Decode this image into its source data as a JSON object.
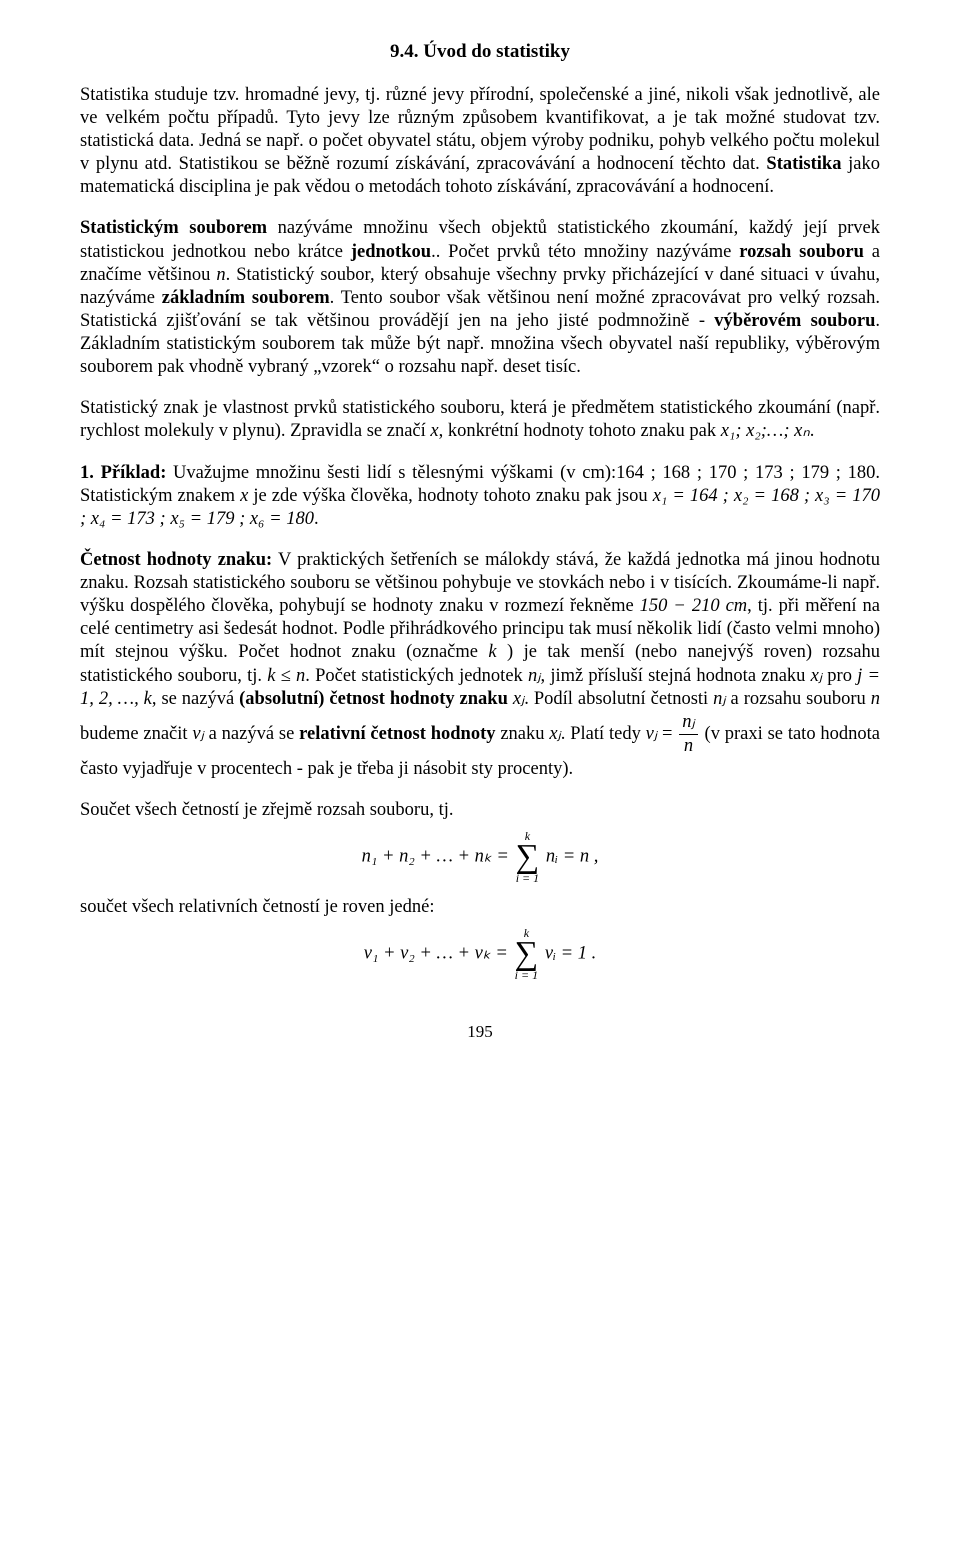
{
  "title": "9.4. Úvod do statistiky",
  "p1a": "Statistika studuje tzv. hromadné jevy, tj. různé jevy přírodní, společenské a jiné, nikoli však jednotlivě, ale ve velkém počtu případů. Tyto jevy lze různým způsobem kvantifikovat, a je tak možné studovat tzv. statistická data. Jedná se např. o počet obyvatel státu, objem výroby podniku, pohyb velkého počtu molekul v plynu atd. Statistikou se běžně rozumí získávání, zpracovávání a hodnocení těchto dat. ",
  "p1b": "Statistika",
  "p1c": " jako matematická disciplina je pak vědou o metodách tohoto získávání, zpracovávání a hodnocení.",
  "p2a": "Statistickým souborem",
  "p2b": " nazýváme množinu všech objektů statistického zkoumání, každý její prvek statistickou jednotkou nebo krátce ",
  "p2c": "jednotkou",
  "p2d": ".. Počet prvků této množiny nazýváme ",
  "p2e": "rozsah souboru",
  "p2f": " a značíme většinou ",
  "p2g": ". Statistický soubor, který obsahuje všechny prvky přicházející v dané situaci v úvahu, nazýváme ",
  "p2h": "základním souborem",
  "p2i": ". Tento soubor však většinou není možné zpracovávat pro velký rozsah. Statistická zjišťování se tak většinou provádějí jen na jeho jisté podmnožině - ",
  "p2j": "výběrovém souboru",
  "p2k": ". Základním statistickým souborem tak může být např. množina všech obyvatel naší republiky, výběrovým souborem pak vhodně vybraný „vzorek“ o rozsahu např. deset tisíc.",
  "n_var": "n",
  "p3a": "Statistický znak je vlastnost prvků statistického souboru, která je předmětem statistického zkoumání (např. rychlost molekuly v plynu). Zpravidla se značí ",
  "p3b": ", konkrétní hodnoty tohoto znaku pak ",
  "p3c": ".",
  "x_var": "x",
  "x_seq": "x₁; x₂;…; xₙ",
  "ex1_a": "1. Příklad:",
  "ex1_b": " Uvažujme množinu šesti lidí s tělesnými výškami (v cm):",
  "ex1_vals": "164 ; 168 ; 170 ; 173 ; 179 ; 180",
  "ex1_c": ". Statistickým znakem ",
  "ex1_d": " je zde výška člověka, hodnoty tohoto znaku pak jsou ",
  "ex1_eq": "x₁ = 164 ;  x₂ = 168 ;  x₃ = 170 ;  x₄ = 173 ;  x₅ = 179 ;  x₆ = 180",
  "p4_a": "Četnost hodnoty znaku:",
  "p4_b": " V praktických šetřeních se málokdy stává, že každá jednotka má jinou hodnotu znaku. Rozsah statistického souboru se většinou pohybuje ve stovkách nebo i v tisících. Zkoumáme-li např. výšku dospělého člověka, pohybují se hodnoty znaku v rozmezí řekněme ",
  "range": "150 − 210 cm",
  "p4_c": ", tj. při měření na celé centimetry asi šedesát hodnot. Podle přihrádkového principu tak musí několik lidí (často velmi mnoho) mít stejnou výšku. Počet hodnot znaku (označme ",
  "k_var": "k",
  "p4_d": " ) je tak menší (nebo nanejvýš roven) rozsahu statistického souboru, tj. ",
  "kn": "k ≤ n",
  "p4_e": ".  Počet statistických jednotek ",
  "nj": "nⱼ",
  "p4_f": ", jimž přísluší stejná hodnota znaku ",
  "xj": "xⱼ",
  "p4_g": " pro ",
  "jrange": "j = 1, 2, …, k",
  "p4_h": ", se nazývá ",
  "p4_i": "(absolutní) četnost hodnoty znaku ",
  "p4_j": ". Podíl absolutní četnosti ",
  "p4_k": " a rozsahu souboru ",
  "p4_l": " budeme značit ",
  "vj": "vⱼ",
  "p4_m": " a nazývá se ",
  "p4_n": "relativní četnost hodnoty",
  "p4_o": " znaku ",
  "p4_p": ". Platí tedy ",
  "p4_q": " (v praxi se tato hodnota často vyjadřuje v procentech - pak je třeba ji násobit sty procenty).",
  "p5": "Součet všech četností je zřejmě rozsah souboru, tj.",
  "f1_lhs": "n₁ + n₂ + … + nₖ  =",
  "f1_rhs": "nᵢ  =  n ,",
  "p6": "součet všech relativních četností je roven jedné:",
  "f2_lhs": "v₁ + v₂ + … + vₖ  =",
  "f2_rhs": "vᵢ  =  1 .",
  "sum_top": "k",
  "sum_bot": "i = 1",
  "page_num": "195"
}
